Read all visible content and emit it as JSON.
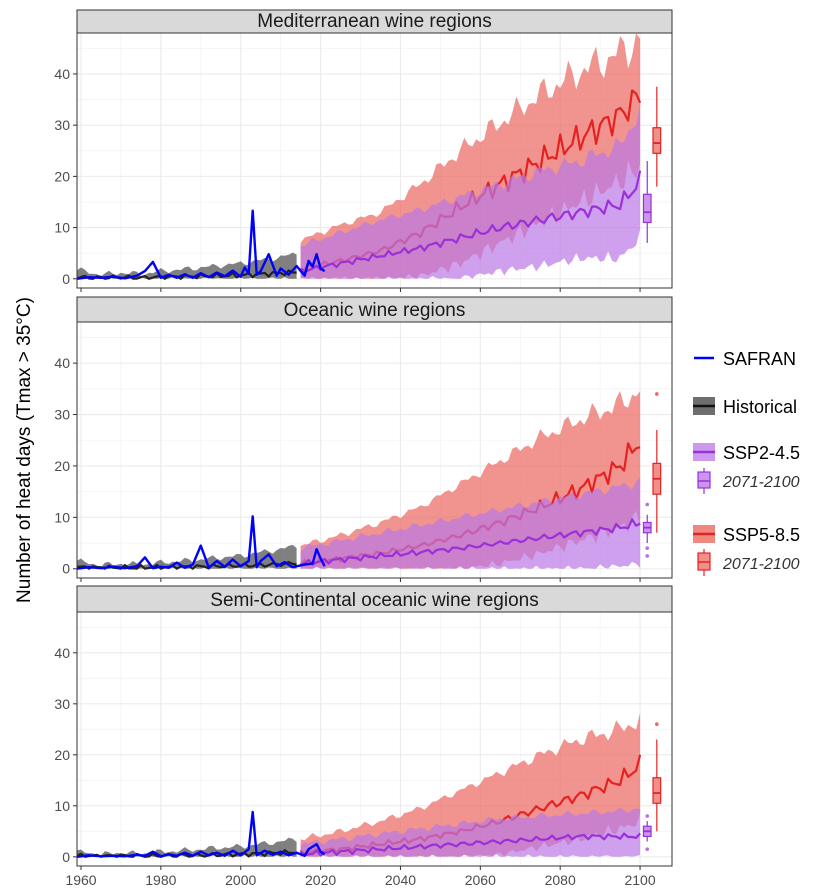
{
  "ylabel": "Number of heat days (Tmax > 35°C)",
  "x_ticks": [
    1960,
    1980,
    2000,
    2020,
    2040,
    2060,
    2080,
    2100
  ],
  "y_ticks": [
    0,
    10,
    20,
    30,
    40
  ],
  "legend": {
    "safran": "SAFRAN",
    "historical": "Historical",
    "ssp245": "SSP2-4.5",
    "ssp245_box": "2071-2100",
    "ssp585": "SSP5-8.5",
    "ssp585_box": "2071-2100"
  },
  "colors": {
    "safran": "#0000ff",
    "historical_line": "#222222",
    "historical_band": "#555555",
    "ssp245_line": "#9b30d9",
    "ssp245_band": "#b978e6",
    "ssp585_line": "#e52222",
    "ssp585_band": "#eb6a62",
    "strip_fill": "#d9d9d9",
    "grid": "#ebebeb"
  },
  "chart_data": [
    {
      "type": "line",
      "title": "Mediterranean wine regions",
      "xlim": [
        1959,
        2108
      ],
      "ylim": [
        -1.8,
        48
      ],
      "safran": {
        "x": [
          1959,
          1962,
          1965,
          1968,
          1971,
          1974,
          1976,
          1978,
          1980,
          1982,
          1984,
          1986,
          1988,
          1990,
          1992,
          1994,
          1996,
          1998,
          2000,
          2001,
          2002,
          2003,
          2004,
          2005,
          2007,
          2009,
          2010,
          2012,
          2014,
          2016,
          2017,
          2018,
          2019,
          2020,
          2021
        ],
        "y": [
          0,
          0.3,
          0.2,
          0.4,
          0.1,
          0.6,
          1.5,
          3.3,
          0.2,
          0.8,
          0.2,
          0.9,
          0.2,
          1.1,
          0.3,
          1.2,
          0.5,
          1.6,
          0.4,
          2.2,
          1.0,
          13.3,
          0.8,
          1.5,
          4.8,
          0.6,
          2.0,
          0.8,
          2.5,
          0.6,
          3.5,
          2.4,
          4.8,
          2.0,
          1.5
        ]
      },
      "historical": {
        "x": [
          1959,
          1965,
          1970,
          1975,
          1980,
          1985,
          1990,
          1995,
          2000,
          2005,
          2010,
          2014
        ],
        "mean": [
          0.3,
          0.2,
          0.3,
          0.2,
          0.3,
          0.4,
          0.5,
          0.6,
          0.7,
          0.9,
          1.1,
          1.3
        ],
        "lower": [
          0,
          0,
          0,
          0,
          0,
          0,
          0,
          0,
          0,
          0,
          0,
          0
        ],
        "upper": [
          1.8,
          0.8,
          1.2,
          0.9,
          1.5,
          1.8,
          2.2,
          2.6,
          3.0,
          3.6,
          4.2,
          5.0
        ]
      },
      "ssp245": {
        "x": [
          2015,
          2025,
          2035,
          2045,
          2055,
          2065,
          2075,
          2085,
          2095,
          2100
        ],
        "mean": [
          1.5,
          3.0,
          4.5,
          6.0,
          8.0,
          10.0,
          11.5,
          13.0,
          14.5,
          19.0
        ],
        "lower": [
          0,
          0,
          0,
          0,
          0,
          1.5,
          2.5,
          4.0,
          4.0,
          8.0
        ],
        "upper": [
          6.5,
          9.0,
          11.5,
          13.5,
          16.0,
          18.5,
          21.0,
          23.0,
          26.0,
          33.0
        ]
      },
      "ssp585": {
        "x": [
          2015,
          2025,
          2035,
          2045,
          2055,
          2065,
          2075,
          2085,
          2095,
          2100
        ],
        "mean": [
          2.0,
          3.5,
          5.5,
          9.0,
          14.0,
          18.5,
          23.0,
          27.5,
          32.0,
          36.0
        ],
        "lower": [
          0,
          0,
          0,
          0.5,
          3.0,
          7.0,
          11.0,
          15.0,
          19.0,
          22.0
        ],
        "upper": [
          7.5,
          10.5,
          13.0,
          18.5,
          25.0,
          30.5,
          36.0,
          40.5,
          44.0,
          47.0
        ]
      },
      "box_ssp245": {
        "x": 2101.8,
        "whisker_low": 7.0,
        "q1": 11.0,
        "median": 13.0,
        "q3": 16.5,
        "whisker_high": 23.0,
        "outliers": []
      },
      "box_ssp585": {
        "x": 2104.2,
        "whisker_low": 18.0,
        "q1": 24.5,
        "median": 26.5,
        "q3": 29.5,
        "whisker_high": 37.5,
        "outliers": []
      }
    },
    {
      "type": "line",
      "title": "Oceanic wine regions",
      "xlim": [
        1959,
        2108
      ],
      "ylim": [
        -1.8,
        48
      ],
      "safran": {
        "x": [
          1959,
          1962,
          1965,
          1968,
          1971,
          1974,
          1976,
          1978,
          1980,
          1982,
          1984,
          1986,
          1988,
          1990,
          1992,
          1994,
          1996,
          1998,
          2000,
          2001,
          2002,
          2003,
          2004,
          2005,
          2007,
          2009,
          2011,
          2013,
          2016,
          2018,
          2019,
          2020,
          2021
        ],
        "y": [
          0,
          0.3,
          0.1,
          0.4,
          0.1,
          0.5,
          2.2,
          0.1,
          0.4,
          0.2,
          1.2,
          0.2,
          0.8,
          4.5,
          0.2,
          1.5,
          0.4,
          1.8,
          0.5,
          1.0,
          1.5,
          10.2,
          0.3,
          1.5,
          2.8,
          0.5,
          1.3,
          0.3,
          0.8,
          1.0,
          3.8,
          2.0,
          0.5
        ]
      },
      "historical": {
        "x": [
          1959,
          1965,
          1970,
          1975,
          1980,
          1985,
          1990,
          1995,
          2000,
          2005,
          2010,
          2014
        ],
        "mean": [
          0.3,
          0.2,
          0.2,
          0.2,
          0.3,
          0.3,
          0.4,
          0.5,
          0.6,
          0.7,
          0.9,
          1.1
        ],
        "lower": [
          0,
          0,
          0,
          0,
          0,
          0,
          0,
          0,
          0,
          0,
          0,
          0
        ],
        "upper": [
          1.5,
          0.7,
          1.0,
          0.8,
          1.2,
          1.5,
          1.8,
          2.2,
          2.5,
          3.2,
          3.8,
          4.5
        ]
      },
      "ssp245": {
        "x": [
          2015,
          2025,
          2035,
          2045,
          2055,
          2065,
          2075,
          2085,
          2095,
          2100
        ],
        "mean": [
          1.0,
          1.8,
          2.5,
          3.2,
          4.0,
          5.0,
          6.0,
          7.0,
          8.0,
          9.0
        ],
        "lower": [
          0,
          0,
          0,
          0,
          0,
          0,
          0,
          0,
          0.5,
          1.0
        ],
        "upper": [
          4.0,
          5.5,
          7.0,
          8.5,
          10.0,
          11.5,
          13.0,
          14.5,
          16.0,
          17.0
        ]
      },
      "ssp585": {
        "x": [
          2015,
          2025,
          2035,
          2045,
          2055,
          2065,
          2075,
          2085,
          2095,
          2100
        ],
        "mean": [
          1.0,
          2.0,
          3.0,
          4.5,
          6.5,
          9.0,
          12.0,
          15.5,
          20.0,
          25.0
        ],
        "lower": [
          0,
          0,
          0,
          0,
          0,
          1.0,
          3.0,
          5.5,
          8.0,
          10.0
        ],
        "upper": [
          4.5,
          6.5,
          9.0,
          12.0,
          16.5,
          21.0,
          25.5,
          29.0,
          32.0,
          35.0
        ]
      },
      "box_ssp245": {
        "x": 2101.8,
        "whisker_low": 5.0,
        "q1": 7.0,
        "median": 8.0,
        "q3": 9.0,
        "whisker_high": 10.5,
        "outliers": [
          2.5,
          4.0,
          12.5
        ]
      },
      "box_ssp585": {
        "x": 2104.2,
        "whisker_low": 7.0,
        "q1": 14.5,
        "median": 17.5,
        "q3": 20.5,
        "whisker_high": 27.0,
        "outliers": [
          34.0
        ]
      }
    },
    {
      "type": "line",
      "title": "Semi-Continental oceanic wine regions",
      "xlim": [
        1959,
        2108
      ],
      "ylim": [
        -1.8,
        48
      ],
      "safran": {
        "x": [
          1959,
          1962,
          1965,
          1968,
          1971,
          1974,
          1976,
          1978,
          1980,
          1982,
          1984,
          1986,
          1988,
          1990,
          1992,
          1994,
          1996,
          1998,
          2000,
          2002,
          2003,
          2004,
          2006,
          2008,
          2010,
          2012,
          2014,
          2016,
          2017,
          2019,
          2020,
          2021
        ],
        "y": [
          0,
          0.3,
          0.1,
          0.2,
          0.1,
          0.4,
          0.2,
          1.0,
          0.1,
          0.5,
          0.2,
          0.8,
          0.2,
          1.0,
          0.3,
          0.8,
          0.2,
          1.2,
          0.3,
          1.5,
          8.8,
          0.3,
          1.2,
          0.4,
          1.0,
          0.3,
          0.8,
          0.2,
          1.5,
          2.5,
          1.0,
          0.5
        ]
      },
      "historical": {
        "x": [
          1959,
          1965,
          1970,
          1975,
          1980,
          1985,
          1990,
          1995,
          2000,
          2005,
          2010,
          2014
        ],
        "mean": [
          0.2,
          0.1,
          0.2,
          0.2,
          0.2,
          0.3,
          0.3,
          0.4,
          0.5,
          0.6,
          0.8,
          0.9
        ],
        "lower": [
          0,
          0,
          0,
          0,
          0,
          0,
          0,
          0,
          0,
          0,
          0,
          0
        ],
        "upper": [
          1.0,
          0.5,
          0.8,
          0.6,
          1.0,
          1.2,
          1.5,
          1.8,
          2.0,
          2.5,
          3.0,
          3.5
        ]
      },
      "ssp245": {
        "x": [
          2015,
          2025,
          2035,
          2045,
          2055,
          2065,
          2075,
          2085,
          2095,
          2100
        ],
        "mean": [
          0.5,
          1.0,
          1.5,
          2.0,
          2.5,
          3.0,
          3.5,
          4.0,
          4.0,
          4.0
        ],
        "lower": [
          0,
          0,
          0,
          0,
          0,
          0,
          0,
          0,
          0,
          0
        ],
        "upper": [
          2.5,
          3.5,
          4.5,
          5.5,
          6.5,
          7.5,
          8.0,
          8.5,
          9.0,
          9.5
        ]
      },
      "ssp585": {
        "x": [
          2015,
          2025,
          2035,
          2045,
          2055,
          2065,
          2075,
          2085,
          2095,
          2100
        ],
        "mean": [
          0.8,
          1.5,
          2.5,
          3.5,
          5.0,
          7.0,
          9.5,
          12.0,
          15.0,
          18.0
        ],
        "lower": [
          0,
          0,
          0,
          0,
          0,
          0.5,
          2.0,
          3.5,
          5.5,
          7.0
        ],
        "upper": [
          3.5,
          5.0,
          7.0,
          9.5,
          13.0,
          16.5,
          20.0,
          23.0,
          25.0,
          27.0
        ]
      },
      "box_ssp245": {
        "x": 2101.8,
        "whisker_low": 3.0,
        "q1": 4.0,
        "median": 5.0,
        "q3": 6.0,
        "whisker_high": 7.0,
        "outliers": [
          1.5,
          8.0
        ]
      },
      "box_ssp585": {
        "x": 2104.2,
        "whisker_low": 5.0,
        "q1": 10.5,
        "median": 12.5,
        "q3": 15.5,
        "whisker_high": 23.0,
        "outliers": [
          26.0
        ]
      }
    }
  ]
}
